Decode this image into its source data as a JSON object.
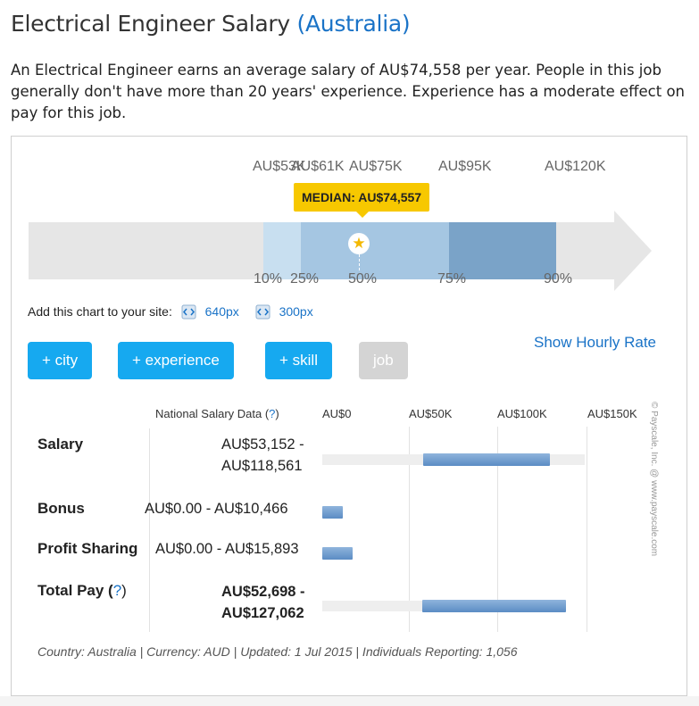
{
  "header": {
    "title": "Electrical Engineer Salary",
    "country": "(Australia)"
  },
  "intro": "An Electrical Engineer earns an average salary of AU$74,558 per year. People in this job generally don't have more than 20 years' experience. Experience has a moderate effect on pay for this job.",
  "range_chart": {
    "top_ticks": [
      "AU$53K",
      "AU$61K",
      "AU$75K",
      "AU$95K",
      "AU$120K"
    ],
    "bottom_ticks": [
      "10%",
      "25%",
      "50%",
      "75%",
      "90%"
    ],
    "median_label": "MEDIAN: AU$74,557",
    "colors": {
      "track": "#e6e6e6",
      "p10_25": "#c8dff0",
      "p25_75": "#a5c6e2",
      "p75_90": "#7aa3c8",
      "median": "#f7c800"
    }
  },
  "embed": {
    "label": "Add this chart to your site:",
    "link_640": "640px",
    "link_300": "300px"
  },
  "filters": {
    "city": "+ city",
    "experience": "+ experience",
    "skill": "+ skill",
    "job": "job"
  },
  "hourly_link": "Show Hourly Rate",
  "table": {
    "header_label": "National Salary Data (",
    "header_q": "?",
    "header_close": ")",
    "scale": [
      "AU$0",
      "AU$50K",
      "AU$100K",
      "AU$150K"
    ],
    "rows": [
      {
        "label": "Salary",
        "value_line1": "AU$53,152 -",
        "value_line2": "AU$118,561"
      },
      {
        "label": "Bonus",
        "value_line1": "AU$0.00 - AU$10,466"
      },
      {
        "label": "Profit Sharing",
        "value_line1": "AU$0.00 - AU$15,893"
      },
      {
        "label": "Total Pay (",
        "q": "?",
        "close": ")",
        "value_line1": "AU$52,698 -",
        "value_line2": "AU$127,062"
      }
    ]
  },
  "footer": "Country: Australia | Currency: AUD | Updated: 1 Jul 2015 | Individuals Reporting: 1,056",
  "credit": "© Payscale, Inc. @ www.payscale.com",
  "icons": [
    "star-icon",
    "code-embed-icon"
  ]
}
